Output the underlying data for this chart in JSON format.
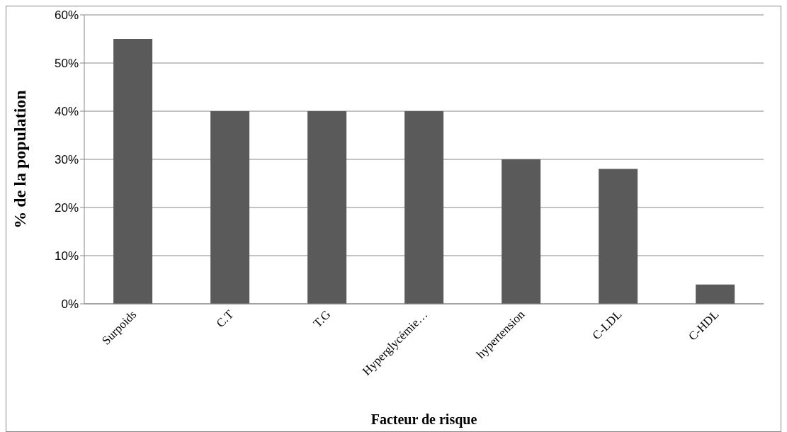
{
  "chart_data": {
    "type": "bar",
    "xlabel": "Facteur  de risque",
    "ylabel": "% de la population",
    "categories": [
      "Surpoids",
      "C.T",
      "T.G",
      "Hyperglycémie…",
      "hypertension",
      "C-LDL",
      "C-HDL"
    ],
    "values": [
      55,
      40,
      40,
      40,
      30,
      28,
      4
    ],
    "color": "#5a5a5a",
    "ylim": [
      0,
      60
    ],
    "yticks": [
      {
        "value": 0,
        "label": "0%"
      },
      {
        "value": 10,
        "label": "10%"
      },
      {
        "value": 20,
        "label": "20%"
      },
      {
        "value": 30,
        "label": "30%"
      },
      {
        "value": 40,
        "label": "40%"
      },
      {
        "value": 50,
        "label": "50%"
      },
      {
        "value": 60,
        "label": "60%"
      }
    ],
    "grid": "y",
    "legend": false
  }
}
